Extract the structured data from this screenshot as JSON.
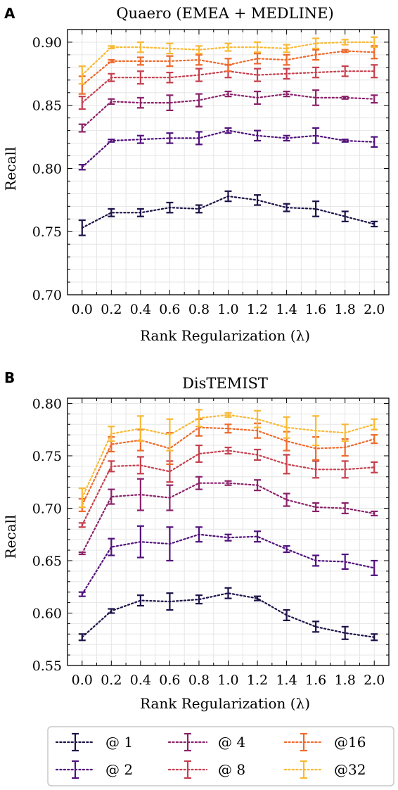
{
  "chart_data": [
    {
      "panel_label": "A",
      "type": "line",
      "title": "Quaero (EMEA + MEDLINE)",
      "xlabel": "Rank Regularization (λ)",
      "ylabel": "Recall",
      "x": [
        0.0,
        0.2,
        0.4,
        0.6,
        0.8,
        1.0,
        1.2,
        1.4,
        1.6,
        1.8,
        2.0
      ],
      "xticks": [
        "0.0",
        "0.2",
        "0.4",
        "0.6",
        "0.8",
        "1.0",
        "1.2",
        "1.4",
        "1.6",
        "1.8",
        "2.0"
      ],
      "ylim": [
        0.7,
        0.91
      ],
      "yticks": [
        "0.70",
        "0.75",
        "0.80",
        "0.85",
        "0.90"
      ],
      "grid": true,
      "series": [
        {
          "name": "@ 1",
          "color": "#1d1147",
          "values": [
            0.753,
            0.765,
            0.765,
            0.769,
            0.768,
            0.778,
            0.775,
            0.769,
            0.768,
            0.762,
            0.756
          ],
          "err": [
            0.006,
            0.003,
            0.003,
            0.004,
            0.003,
            0.004,
            0.004,
            0.003,
            0.006,
            0.004,
            0.002
          ]
        },
        {
          "name": "@ 2",
          "color": "#51127c",
          "values": [
            0.801,
            0.822,
            0.823,
            0.824,
            0.824,
            0.83,
            0.826,
            0.824,
            0.826,
            0.822,
            0.821
          ],
          "err": [
            0.002,
            0.001,
            0.003,
            0.004,
            0.005,
            0.002,
            0.004,
            0.002,
            0.006,
            0.001,
            0.004
          ]
        },
        {
          "name": "@ 4",
          "color": "#8a226a",
          "values": [
            0.832,
            0.853,
            0.852,
            0.852,
            0.854,
            0.859,
            0.856,
            0.859,
            0.856,
            0.856,
            0.855
          ],
          "err": [
            0.003,
            0.002,
            0.004,
            0.006,
            0.005,
            0.002,
            0.005,
            0.002,
            0.006,
            0.001,
            0.003
          ]
        },
        {
          "name": "@ 8",
          "color": "#c6404e",
          "values": [
            0.852,
            0.872,
            0.872,
            0.872,
            0.874,
            0.877,
            0.874,
            0.875,
            0.876,
            0.877,
            0.877
          ],
          "err": [
            0.005,
            0.003,
            0.005,
            0.004,
            0.005,
            0.005,
            0.005,
            0.004,
            0.004,
            0.004,
            0.005
          ]
        },
        {
          "name": "@16",
          "color": "#ee6a2c",
          "values": [
            0.866,
            0.885,
            0.885,
            0.885,
            0.886,
            0.882,
            0.887,
            0.886,
            0.89,
            0.893,
            0.892
          ],
          "err": [
            0.007,
            0.001,
            0.003,
            0.004,
            0.004,
            0.005,
            0.004,
            0.004,
            0.004,
            0.001,
            0.005
          ]
        },
        {
          "name": "@32",
          "color": "#f9b935",
          "values": [
            0.874,
            0.896,
            0.896,
            0.895,
            0.894,
            0.896,
            0.896,
            0.895,
            0.899,
            0.9,
            0.9
          ],
          "err": [
            0.007,
            0.001,
            0.004,
            0.004,
            0.003,
            0.003,
            0.004,
            0.003,
            0.004,
            0.002,
            0.004
          ]
        }
      ]
    },
    {
      "panel_label": "B",
      "type": "line",
      "title": "DisTEMIST",
      "xlabel": "Rank Regularization (λ)",
      "ylabel": "Recall",
      "x": [
        0.0,
        0.2,
        0.4,
        0.6,
        0.8,
        1.0,
        1.2,
        1.4,
        1.6,
        1.8,
        2.0
      ],
      "xticks": [
        "0.0",
        "0.2",
        "0.4",
        "0.6",
        "0.8",
        "1.0",
        "1.2",
        "1.4",
        "1.6",
        "1.8",
        "2.0"
      ],
      "ylim": [
        0.55,
        0.805
      ],
      "yticks": [
        "0.55",
        "0.60",
        "0.65",
        "0.70",
        "0.75",
        "0.80"
      ],
      "grid": true,
      "series": [
        {
          "name": "@ 1",
          "color": "#1d1147",
          "values": [
            0.577,
            0.602,
            0.612,
            0.611,
            0.613,
            0.619,
            0.614,
            0.598,
            0.587,
            0.581,
            0.577
          ],
          "err": [
            0.003,
            0.002,
            0.005,
            0.008,
            0.004,
            0.005,
            0.002,
            0.005,
            0.005,
            0.006,
            0.003
          ]
        },
        {
          "name": "@ 2",
          "color": "#51127c",
          "values": [
            0.618,
            0.663,
            0.668,
            0.666,
            0.675,
            0.672,
            0.673,
            0.661,
            0.65,
            0.649,
            0.643
          ],
          "err": [
            0.002,
            0.008,
            0.015,
            0.016,
            0.007,
            0.003,
            0.005,
            0.003,
            0.005,
            0.007,
            0.007
          ]
        },
        {
          "name": "@ 4",
          "color": "#8a226a",
          "values": [
            0.657,
            0.711,
            0.713,
            0.71,
            0.724,
            0.724,
            0.722,
            0.708,
            0.701,
            0.7,
            0.695
          ],
          "err": [
            0.001,
            0.007,
            0.015,
            0.012,
            0.006,
            0.002,
            0.005,
            0.006,
            0.004,
            0.005,
            0.002
          ]
        },
        {
          "name": "@ 8",
          "color": "#c6404e",
          "values": [
            0.684,
            0.74,
            0.741,
            0.735,
            0.752,
            0.755,
            0.751,
            0.742,
            0.737,
            0.737,
            0.739
          ],
          "err": [
            0.002,
            0.005,
            0.008,
            0.01,
            0.008,
            0.003,
            0.005,
            0.009,
            0.008,
            0.008,
            0.005
          ]
        },
        {
          "name": "@16",
          "color": "#ee6a2c",
          "values": [
            0.703,
            0.761,
            0.765,
            0.757,
            0.777,
            0.776,
            0.774,
            0.764,
            0.757,
            0.758,
            0.766
          ],
          "err": [
            0.006,
            0.007,
            0.01,
            0.015,
            0.008,
            0.004,
            0.007,
            0.009,
            0.011,
            0.008,
            0.004
          ]
        },
        {
          "name": "@32",
          "color": "#f9b935",
          "values": [
            0.71,
            0.771,
            0.776,
            0.77,
            0.786,
            0.789,
            0.785,
            0.777,
            0.774,
            0.772,
            0.78
          ],
          "err": [
            0.009,
            0.007,
            0.012,
            0.015,
            0.008,
            0.002,
            0.008,
            0.01,
            0.014,
            0.008,
            0.005
          ]
        }
      ]
    }
  ],
  "legend": {
    "placement": "bottom",
    "entries": [
      "@ 1",
      "@ 4",
      "@16",
      "@ 2",
      "@ 8",
      "@32"
    ]
  }
}
